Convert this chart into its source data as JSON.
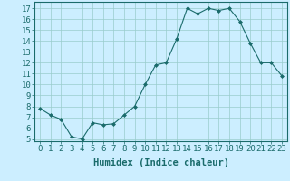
{
  "x": [
    0,
    1,
    2,
    3,
    4,
    5,
    6,
    7,
    8,
    9,
    10,
    11,
    12,
    13,
    14,
    15,
    16,
    17,
    18,
    19,
    20,
    21,
    22,
    23
  ],
  "y": [
    7.8,
    7.2,
    6.8,
    5.2,
    5.0,
    6.5,
    6.3,
    6.4,
    7.2,
    8.0,
    10.0,
    11.8,
    12.0,
    14.2,
    17.0,
    16.5,
    17.0,
    16.8,
    17.0,
    15.8,
    13.8,
    12.0,
    12.0,
    10.8
  ],
  "xlabel": "Humidex (Indice chaleur)",
  "ylim": [
    4.8,
    17.6
  ],
  "xlim": [
    -0.5,
    23.5
  ],
  "yticks": [
    5,
    6,
    7,
    8,
    9,
    10,
    11,
    12,
    13,
    14,
    15,
    16,
    17
  ],
  "xticks": [
    0,
    1,
    2,
    3,
    4,
    5,
    6,
    7,
    8,
    9,
    10,
    11,
    12,
    13,
    14,
    15,
    16,
    17,
    18,
    19,
    20,
    21,
    22,
    23
  ],
  "line_color": "#1a6b6b",
  "marker_color": "#1a6b6b",
  "bg_color": "#cceeff",
  "grid_color": "#99cccc",
  "axis_color": "#1a6b6b",
  "tick_label_color": "#1a6b6b",
  "xlabel_color": "#1a6b6b",
  "font_size": 6.5,
  "xlabel_fontsize": 7.5
}
